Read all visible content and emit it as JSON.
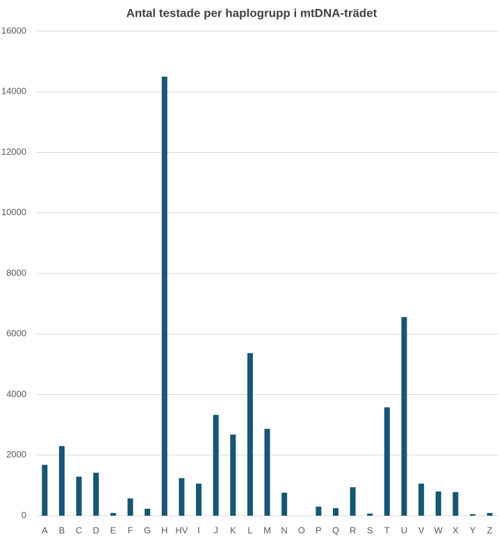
{
  "chart_data": {
    "type": "bar",
    "title": "Antal testade per haplogrupp i mtDNA-trädet",
    "categories": [
      "A",
      "B",
      "C",
      "D",
      "E",
      "F",
      "G",
      "H",
      "HV",
      "I",
      "J",
      "K",
      "L",
      "M",
      "N",
      "O",
      "P",
      "Q",
      "R",
      "S",
      "T",
      "U",
      "V",
      "W",
      "X",
      "Y",
      "Z"
    ],
    "values": [
      1680,
      2300,
      1290,
      1420,
      90,
      570,
      230,
      14500,
      1240,
      1060,
      3330,
      2680,
      5370,
      2870,
      760,
      0,
      300,
      250,
      940,
      70,
      3580,
      6560,
      1060,
      800,
      780,
      50,
      90
    ],
    "color": "#175674",
    "ylim": [
      0,
      16000
    ],
    "yticks": [
      0,
      2000,
      4000,
      6000,
      8000,
      10000,
      12000,
      14000,
      16000
    ],
    "grid": true
  }
}
